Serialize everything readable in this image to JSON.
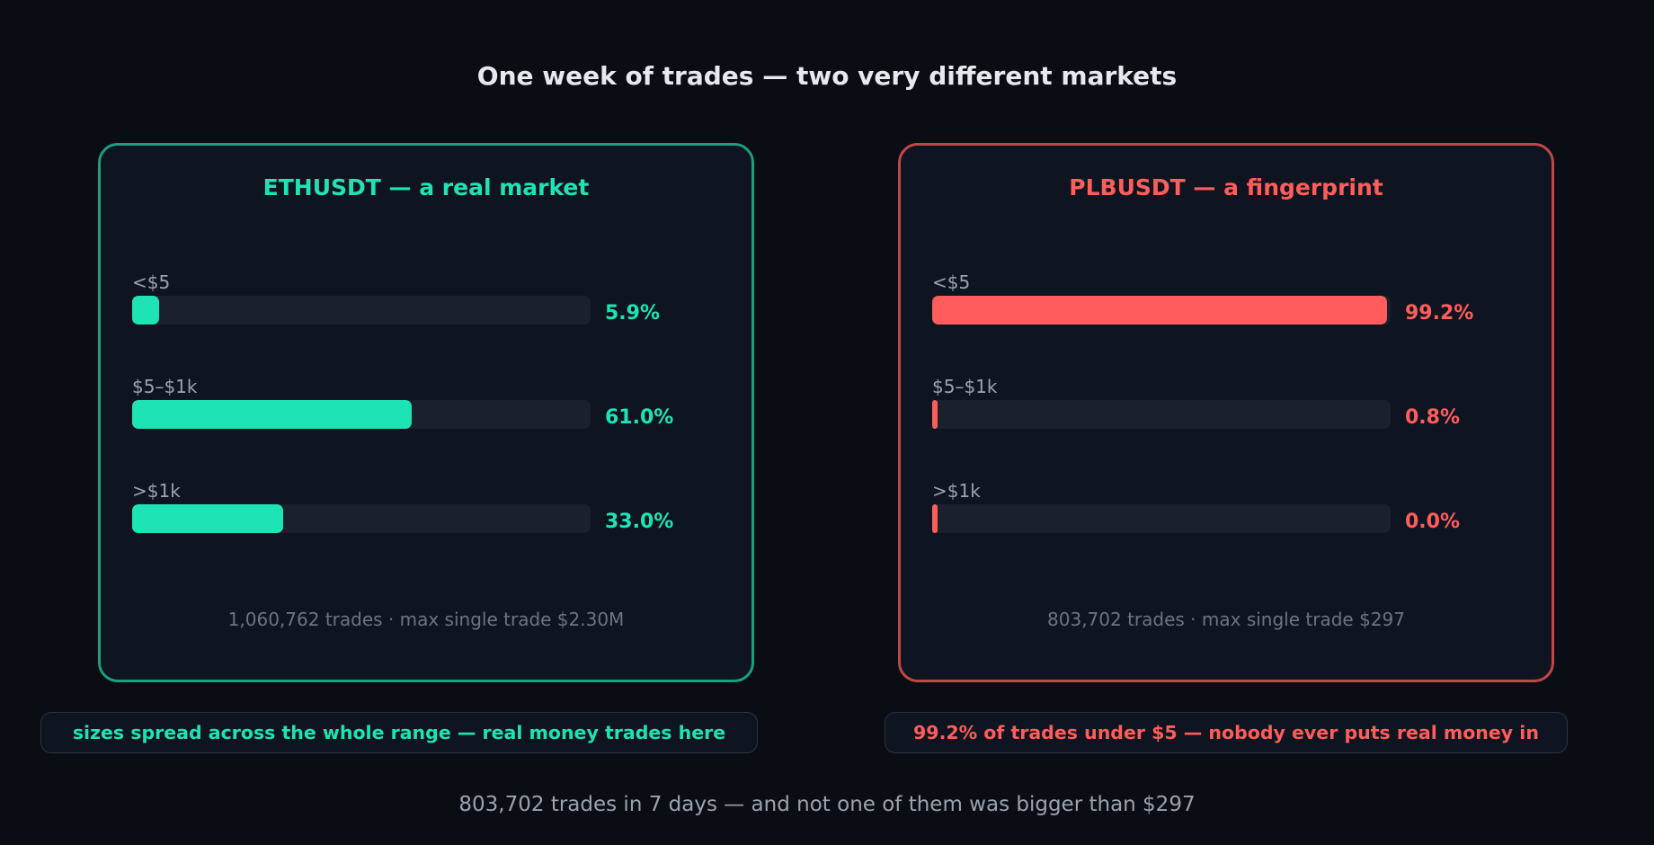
{
  "title": "One week of trades — two very different markets",
  "colors": {
    "eth_accent": "#1ee3b4",
    "eth_border": "#1d9e7d",
    "plb_accent": "#ff5c5c",
    "plb_border": "#c14747",
    "background": "#0a0e14",
    "panel_bg": "#0f1520",
    "track": "#1b212c"
  },
  "chart_data": [
    {
      "type": "bar",
      "orientation": "horizontal",
      "title": "ETHUSDT — a real market",
      "categories": [
        "<$5",
        "$5–$1k",
        ">$1k"
      ],
      "values": [
        5.9,
        61.0,
        33.0
      ],
      "labels": [
        "5.9%",
        "61.0%",
        "33.0%"
      ],
      "unit": "%",
      "xlim": [
        0,
        100
      ],
      "grid": false,
      "footer": "1,060,762 trades · max single trade $2.30M"
    },
    {
      "type": "bar",
      "orientation": "horizontal",
      "title": "PLBUSDT — a fingerprint",
      "categories": [
        "<$5",
        "$5–$1k",
        ">$1k"
      ],
      "values": [
        99.2,
        0.8,
        0.0
      ],
      "labels": [
        "99.2%",
        "0.8%",
        "0.0%"
      ],
      "unit": "%",
      "xlim": [
        0,
        100
      ],
      "grid": false,
      "footer": "803,702 trades · max single trade $297"
    }
  ],
  "callouts": {
    "eth": "sizes spread across the whole range — real money trades here",
    "plb": "99.2% of trades under $5 — nobody ever puts real money in"
  },
  "bottom_note": "803,702 trades in 7 days — and not one of them was bigger than $297"
}
